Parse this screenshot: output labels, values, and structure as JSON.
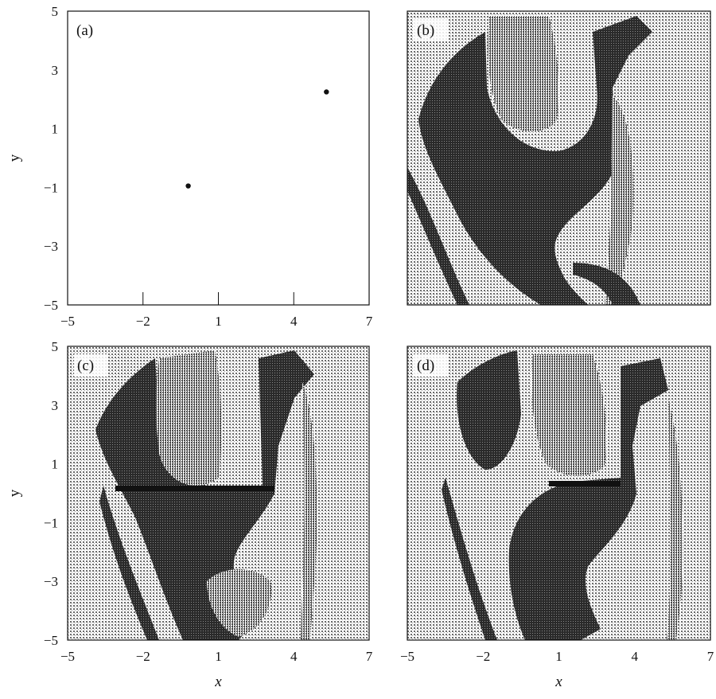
{
  "chart_data": [
    {
      "type": "scatter",
      "panel": "(a)",
      "xlim": [
        -5,
        7
      ],
      "ylim": [
        -5,
        5
      ],
      "xticks": [
        -5,
        -2,
        1,
        4,
        7
      ],
      "yticks": [
        -5,
        -3,
        -1,
        1,
        3,
        5
      ],
      "xlabel": "",
      "ylabel": "y",
      "points": [
        {
          "x": -0.2,
          "y": -0.95
        },
        {
          "x": 5.3,
          "y": 2.25
        }
      ],
      "grid": false
    },
    {
      "type": "heatmap",
      "panel": "(b)",
      "xlim": [
        -5,
        7
      ],
      "ylim": [
        -5,
        5
      ],
      "xlabel": "",
      "ylabel": "",
      "description_of_fill": "dense stippled basin map",
      "grid": false
    },
    {
      "type": "heatmap",
      "panel": "(c)",
      "xlim": [
        -5,
        7
      ],
      "ylim": [
        -5,
        5
      ],
      "xticks": [
        -5,
        -2,
        1,
        4,
        7
      ],
      "yticks": [
        -5,
        -3,
        -1,
        1,
        3,
        5
      ],
      "xlabel": "x",
      "ylabel": "y",
      "grid": false
    },
    {
      "type": "heatmap",
      "panel": "(d)",
      "xlim": [
        -5,
        7
      ],
      "ylim": [
        -5,
        5
      ],
      "xticks": [
        -5,
        -2,
        1,
        4,
        7
      ],
      "xlabel": "x",
      "ylabel": "",
      "grid": false
    }
  ],
  "colors": {
    "ink": "#111111",
    "light_stipple": "#bdbdbd",
    "dark_stipple": "#3c3c3c",
    "background": "#ffffff"
  }
}
